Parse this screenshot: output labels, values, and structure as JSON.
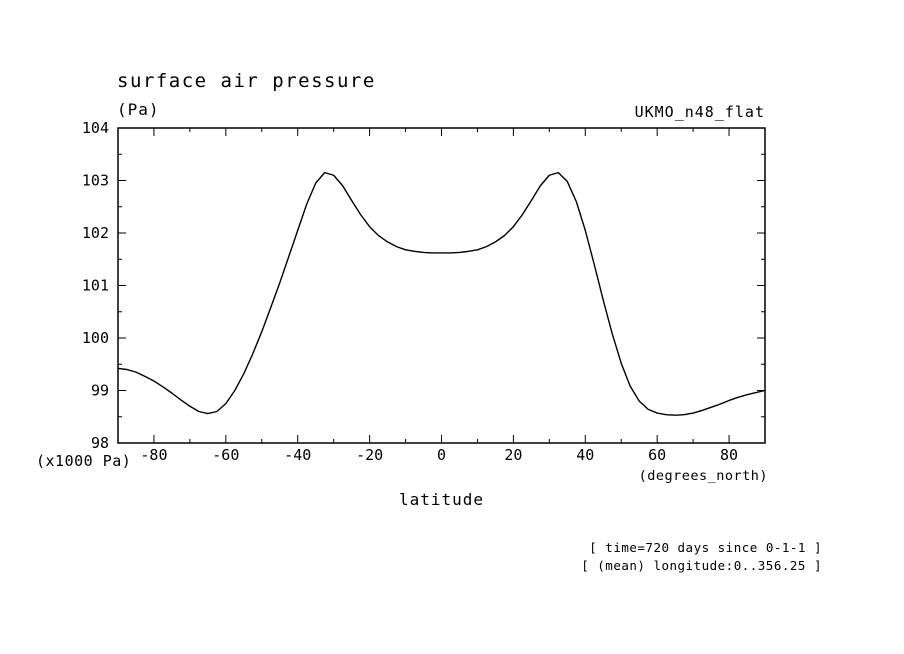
{
  "title": "surface air pressure",
  "y_unit_label": "(Pa)",
  "dataset_label": "UKMO_n48_flat",
  "y_scale_label": "(x1000 Pa)",
  "x_unit_label": "(degrees_north)",
  "xlabel": "latitude",
  "annotations": [
    "[ time=720 days since 0-1-1 ]",
    "[ (mean) longitude:0..356.25 ]"
  ],
  "line_color": "#000000",
  "chart_data": {
    "type": "line",
    "title": "surface air pressure",
    "xlabel": "latitude (degrees_north)",
    "ylabel": "surface air pressure (x1000 Pa)",
    "xlim": [
      -90,
      90
    ],
    "ylim": [
      98,
      104
    ],
    "x_ticks": [
      -80,
      -60,
      -40,
      -20,
      0,
      20,
      40,
      60,
      80
    ],
    "y_ticks": [
      98,
      99,
      100,
      101,
      102,
      103,
      104
    ],
    "grid": false,
    "legend": "none",
    "x": [
      -90,
      -87.5,
      -85,
      -82.5,
      -80,
      -77.5,
      -75,
      -72.5,
      -70,
      -67.5,
      -65,
      -62.5,
      -60,
      -57.5,
      -55,
      -52.5,
      -50,
      -47.5,
      -45,
      -42.5,
      -40,
      -37.5,
      -35,
      -32.5,
      -30,
      -27.5,
      -25,
      -22.5,
      -20,
      -17.5,
      -15,
      -12.5,
      -10,
      -7.5,
      -5,
      -2.5,
      0,
      2.5,
      5,
      7.5,
      10,
      12.5,
      15,
      17.5,
      20,
      22.5,
      25,
      27.5,
      30,
      32.5,
      35,
      37.5,
      40,
      42.5,
      45,
      47.5,
      50,
      52.5,
      55,
      57.5,
      60,
      62.5,
      65,
      67.5,
      70,
      72.5,
      75,
      77.5,
      80,
      82.5,
      85,
      87.5,
      90
    ],
    "y": [
      99.42,
      99.4,
      99.35,
      99.27,
      99.18,
      99.07,
      98.95,
      98.82,
      98.7,
      98.6,
      98.56,
      98.6,
      98.75,
      99.0,
      99.32,
      99.7,
      100.12,
      100.58,
      101.05,
      101.55,
      102.05,
      102.55,
      102.95,
      103.15,
      103.1,
      102.9,
      102.62,
      102.35,
      102.12,
      101.95,
      101.83,
      101.74,
      101.68,
      101.65,
      101.63,
      101.62,
      101.62,
      101.62,
      101.63,
      101.65,
      101.68,
      101.74,
      101.83,
      101.95,
      102.12,
      102.35,
      102.62,
      102.9,
      103.1,
      103.15,
      102.98,
      102.6,
      102.05,
      101.4,
      100.72,
      100.08,
      99.52,
      99.08,
      98.8,
      98.64,
      98.57,
      98.54,
      98.53,
      98.54,
      98.57,
      98.62,
      98.68,
      98.74,
      98.81,
      98.87,
      98.92,
      98.96,
      99.0
    ]
  }
}
